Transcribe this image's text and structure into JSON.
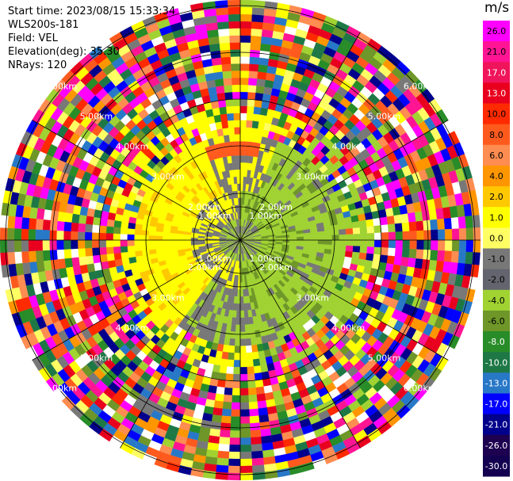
{
  "info": {
    "start_time": "Start time: 2023/08/15 15:33:34",
    "instrument": "WLS200s-181",
    "field": "Field: VEL",
    "elevation": "Elevation(deg): 35.30",
    "nrays": "NRays: 120"
  },
  "colorbar": {
    "unit": "m/s",
    "ticks": [
      "26.0",
      "21.0",
      "17.0",
      "13.0",
      "10.0",
      "8.0",
      "6.0",
      "4.0",
      "2.0",
      "1.0",
      "0.0",
      "-1.0",
      "-2.0",
      "-4.0",
      "-6.0",
      "-8.0",
      "-10.0",
      "-13.0",
      "-17.0",
      "-21.0",
      "-26.0",
      "-30.0"
    ],
    "colors": [
      "#ff00ff",
      "#ff1493",
      "#f0145a",
      "#e8001e",
      "#ff2a00",
      "#ff5a1e",
      "#ff8c50",
      "#ff9600",
      "#ffc800",
      "#ffff00",
      "#ffff64",
      "#787878",
      "#64646e",
      "#a0d232",
      "#6e9628",
      "#288c28",
      "#1e7846",
      "#2878c8",
      "#0000ff",
      "#00008c",
      "#1e0050",
      "#140050"
    ]
  },
  "chart_data": {
    "type": "heatmap",
    "projection": "polar-ppi",
    "field": "VEL",
    "units": "m/s",
    "nrays": 120,
    "ring_labels": [
      "1.00km",
      "2.00km",
      "3.00km",
      "4.00km",
      "5.00km",
      "6.00km"
    ],
    "ring_label_positions": [
      "north-west",
      "south-east",
      "north-east",
      "south-west"
    ],
    "colorbar_range": [
      -30.0,
      26.0
    ],
    "regions": [
      {
        "sector": "north-west",
        "range_km": [
          0,
          2.5
        ],
        "value_class": "1.0 to 2.0"
      },
      {
        "sector": "north-east",
        "range_km": [
          0,
          2.5
        ],
        "value_class": "-2.0 to -4.0"
      },
      {
        "sector": "south-west",
        "range_km": [
          0,
          2.5
        ],
        "value_class": "1.0 to 2.0"
      },
      {
        "sector": "south-east",
        "range_km": [
          0,
          2.5
        ],
        "value_class": "-2.0 to -4.0"
      },
      {
        "sector": "all",
        "range_km": [
          2.5,
          7
        ],
        "value_class": "noise"
      }
    ]
  }
}
